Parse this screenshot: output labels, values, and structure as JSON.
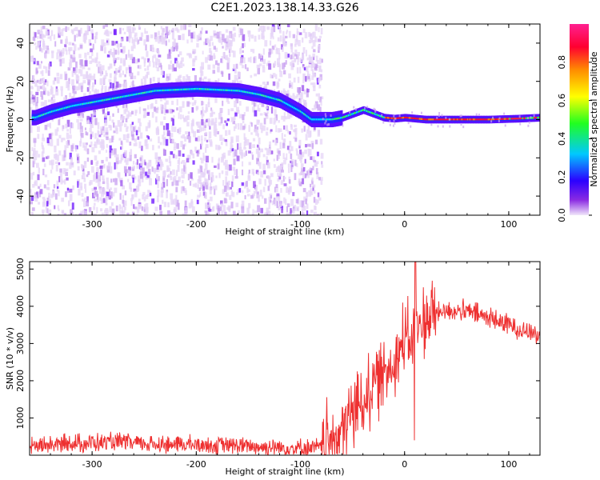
{
  "title": "C2E1.2023.138.14.33.G26",
  "colors": {
    "snr_line": "#ee3030",
    "cmap": [
      "#e8d8f5",
      "#6a00ff",
      "#1e1eff",
      "#00e0ff",
      "#40ff40",
      "#ffff00",
      "#ff8000",
      "#ff0050",
      "#ff30a0"
    ]
  },
  "chart_data": [
    {
      "type": "heatmap",
      "xlabel": "Height of straight line (km)",
      "ylabel": "Frequency (Hz)",
      "xlim": [
        -360,
        130
      ],
      "ylim": [
        -50,
        50
      ],
      "xticks": [
        -300,
        -200,
        -100,
        0,
        100
      ],
      "yticks": [
        40,
        20,
        0,
        -20,
        -40
      ],
      "grid": false,
      "noise_region_x": [
        -360,
        -80
      ],
      "ridge": {
        "x": [
          -355,
          -340,
          -320,
          -300,
          -280,
          -260,
          -240,
          -220,
          -200,
          -180,
          -160,
          -140,
          -120,
          -100,
          -90,
          -80,
          -70,
          -60,
          -50,
          -40,
          -30,
          -20,
          -10,
          0,
          20,
          50,
          80,
          110,
          130
        ],
        "y": [
          1,
          4,
          7,
          9,
          11,
          13,
          15,
          15.5,
          16,
          15.5,
          15,
          13,
          10,
          4,
          0,
          0,
          0,
          1,
          3,
          5,
          3,
          1,
          0.5,
          1,
          0,
          0,
          0,
          0.5,
          1
        ]
      },
      "colorbar": {
        "label": "Normalized spectral amplitude",
        "range": [
          0,
          1
        ],
        "ticks": [
          0.0,
          0.2,
          0.4,
          0.6,
          0.8
        ]
      }
    },
    {
      "type": "line",
      "xlabel": "Height of straight line (km)",
      "ylabel": "SNR (10 * v/v)",
      "xlim": [
        -360,
        130
      ],
      "ylim": [
        0,
        5200
      ],
      "xticks": [
        -300,
        -200,
        -100,
        0,
        100
      ],
      "yticks": [
        1000,
        2000,
        3000,
        4000,
        5000
      ],
      "grid": false,
      "series": [
        {
          "x": [
            -360,
            -340,
            -320,
            -300,
            -280,
            -260,
            -240,
            -220,
            -200,
            -180,
            -160,
            -140,
            -120,
            -100,
            -80,
            -70,
            -60,
            -50,
            -40,
            -30,
            -20,
            -10,
            0,
            10,
            20,
            30,
            40,
            60,
            80,
            100,
            120,
            130
          ],
          "y": [
            250,
            280,
            320,
            330,
            350,
            320,
            300,
            290,
            280,
            270,
            250,
            230,
            200,
            190,
            200,
            400,
            700,
            1100,
            1500,
            1900,
            2200,
            2600,
            3000,
            3300,
            3600,
            3800,
            3900,
            3850,
            3700,
            3500,
            3300,
            3200
          ]
        }
      ]
    }
  ]
}
